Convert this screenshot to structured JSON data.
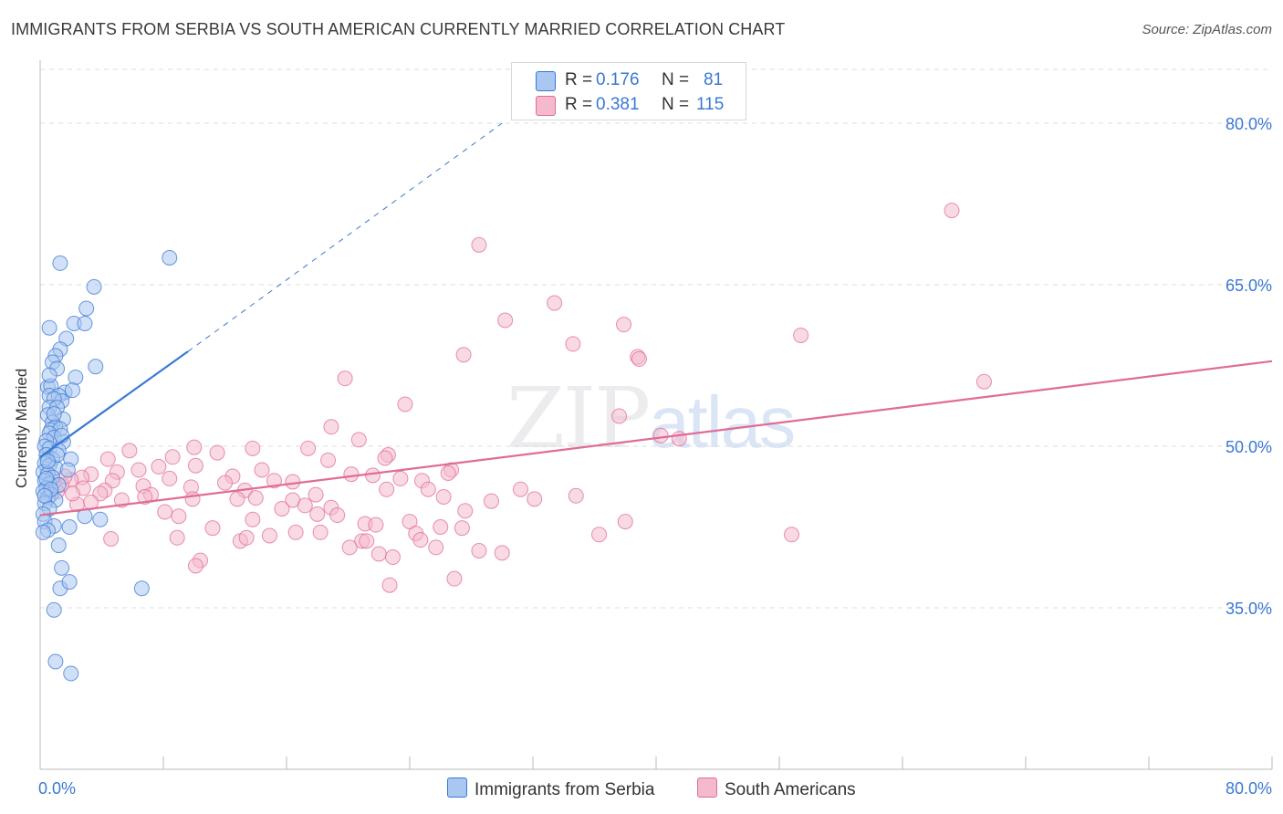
{
  "header": {
    "title": "IMMIGRANTS FROM SERBIA VS SOUTH AMERICAN CURRENTLY MARRIED CORRELATION CHART",
    "source": "Source: ZipAtlas.com"
  },
  "watermark": {
    "zip": "ZIP",
    "atlas": "atlas"
  },
  "colors": {
    "blue": "#3a78d4",
    "blue_fill": "#a9c7f0",
    "pink": "#e06c96",
    "pink_fill": "#f4b9cd",
    "grid": "#dddddd"
  },
  "legend": {
    "rows": [
      {
        "r_label": "R = ",
        "r_value": "0.176",
        "n_label": "N = ",
        "n_value": "81"
      },
      {
        "r_label": "R = ",
        "r_value": "0.381",
        "n_label": "N = ",
        "n_value": "115"
      }
    ]
  },
  "bottom_legend": {
    "series1": "Immigrants from Serbia",
    "series2": "South Americans"
  },
  "chart_data": {
    "type": "scatter",
    "title": "IMMIGRANTS FROM SERBIA VS SOUTH AMERICAN CURRENTLY MARRIED CORRELATION CHART",
    "xlabel": "",
    "ylabel": "Currently Married",
    "xlim": [
      0,
      80
    ],
    "ylim": [
      20,
      85
    ],
    "x_tick_labels": [
      "0.0%",
      "80.0%"
    ],
    "y_ticks": [
      35,
      50,
      65,
      80
    ],
    "y_tick_labels": [
      "35.0%",
      "50.0%",
      "65.0%",
      "80.0%"
    ],
    "grid": true,
    "legend_position": "top-center",
    "series": [
      {
        "name": "Immigrants from Serbia",
        "color": "#3a78d4",
        "r": 0.176,
        "n": 81,
        "trend": {
          "x0": 0,
          "y0": 49.0,
          "x1": 9.6,
          "y1": 58.8,
          "extend_to_x": 30.0,
          "extend_to_y": 80.0
        },
        "points": [
          [
            1.3,
            67.0
          ],
          [
            8.4,
            67.5
          ],
          [
            3.5,
            64.8
          ],
          [
            3.0,
            62.8
          ],
          [
            0.6,
            61.0
          ],
          [
            2.2,
            61.4
          ],
          [
            2.9,
            61.4
          ],
          [
            1.7,
            60.0
          ],
          [
            1.3,
            59.0
          ],
          [
            1.0,
            58.4
          ],
          [
            0.8,
            57.8
          ],
          [
            1.1,
            57.2
          ],
          [
            3.6,
            57.4
          ],
          [
            2.3,
            56.4
          ],
          [
            0.5,
            55.5
          ],
          [
            0.7,
            55.6
          ],
          [
            1.6,
            55.0
          ],
          [
            2.1,
            55.2
          ],
          [
            0.6,
            54.7
          ],
          [
            1.2,
            54.7
          ],
          [
            1.4,
            54.2
          ],
          [
            0.9,
            54.4
          ],
          [
            0.6,
            53.6
          ],
          [
            1.1,
            53.6
          ],
          [
            0.5,
            52.9
          ],
          [
            1.5,
            52.5
          ],
          [
            0.8,
            52.2
          ],
          [
            1.0,
            51.8
          ],
          [
            0.7,
            51.5
          ],
          [
            1.3,
            51.6
          ],
          [
            0.6,
            51.2
          ],
          [
            0.9,
            50.8
          ],
          [
            0.4,
            50.5
          ],
          [
            1.5,
            50.4
          ],
          [
            0.3,
            50.0
          ],
          [
            0.6,
            49.8
          ],
          [
            1.2,
            49.6
          ],
          [
            0.4,
            49.2
          ],
          [
            0.8,
            48.8
          ],
          [
            2.0,
            48.8
          ],
          [
            0.3,
            48.4
          ],
          [
            0.6,
            48.2
          ],
          [
            1.0,
            48.0
          ],
          [
            0.2,
            47.6
          ],
          [
            0.5,
            47.4
          ],
          [
            0.8,
            47.1
          ],
          [
            0.3,
            46.8
          ],
          [
            0.6,
            46.5
          ],
          [
            1.2,
            46.4
          ],
          [
            0.4,
            46.1
          ],
          [
            0.2,
            45.8
          ],
          [
            0.7,
            45.5
          ],
          [
            0.5,
            45.2
          ],
          [
            1.0,
            45.0
          ],
          [
            0.3,
            44.7
          ],
          [
            0.6,
            44.2
          ],
          [
            0.2,
            43.7
          ],
          [
            2.9,
            43.5
          ],
          [
            3.9,
            43.2
          ],
          [
            0.3,
            43.0
          ],
          [
            1.9,
            42.5
          ],
          [
            0.9,
            42.6
          ],
          [
            0.5,
            42.2
          ],
          [
            0.2,
            42.0
          ],
          [
            1.2,
            40.8
          ],
          [
            1.4,
            38.7
          ],
          [
            1.3,
            36.8
          ],
          [
            1.9,
            37.4
          ],
          [
            6.6,
            36.8
          ],
          [
            0.9,
            34.8
          ],
          [
            1.0,
            30.0
          ],
          [
            2.0,
            28.9
          ],
          [
            0.4,
            47.0
          ],
          [
            0.7,
            46.0
          ],
          [
            1.1,
            49.2
          ],
          [
            0.5,
            48.6
          ],
          [
            1.4,
            51.0
          ],
          [
            0.9,
            53.0
          ],
          [
            0.6,
            56.6
          ],
          [
            1.8,
            47.8
          ],
          [
            0.3,
            45.4
          ]
        ]
      },
      {
        "name": "South Americans",
        "color": "#e06c96",
        "r": 0.381,
        "n": 115,
        "trend": {
          "x0": 0,
          "y0": 43.6,
          "x1": 80,
          "y1": 57.9
        },
        "points": [
          [
            59.2,
            71.9
          ],
          [
            28.5,
            68.7
          ],
          [
            33.4,
            63.3
          ],
          [
            30.2,
            61.7
          ],
          [
            37.9,
            61.3
          ],
          [
            34.6,
            59.5
          ],
          [
            49.4,
            60.3
          ],
          [
            27.5,
            58.5
          ],
          [
            38.8,
            58.3
          ],
          [
            38.9,
            58.1
          ],
          [
            19.8,
            56.3
          ],
          [
            61.3,
            56.0
          ],
          [
            23.7,
            53.9
          ],
          [
            37.6,
            52.8
          ],
          [
            18.9,
            51.8
          ],
          [
            20.7,
            50.6
          ],
          [
            40.3,
            51.0
          ],
          [
            41.5,
            50.7
          ],
          [
            17.4,
            49.8
          ],
          [
            22.6,
            49.2
          ],
          [
            13.8,
            49.8
          ],
          [
            10.0,
            49.9
          ],
          [
            11.5,
            49.4
          ],
          [
            5.8,
            49.6
          ],
          [
            8.6,
            49.0
          ],
          [
            4.4,
            48.8
          ],
          [
            18.7,
            48.7
          ],
          [
            22.4,
            48.9
          ],
          [
            26.7,
            47.8
          ],
          [
            14.4,
            47.8
          ],
          [
            10.1,
            48.2
          ],
          [
            7.7,
            48.1
          ],
          [
            6.4,
            47.8
          ],
          [
            5.0,
            47.6
          ],
          [
            3.3,
            47.4
          ],
          [
            2.7,
            47.1
          ],
          [
            20.2,
            47.4
          ],
          [
            21.6,
            47.3
          ],
          [
            12.5,
            47.2
          ],
          [
            8.4,
            47.0
          ],
          [
            4.7,
            46.8
          ],
          [
            2.0,
            46.9
          ],
          [
            1.4,
            46.4
          ],
          [
            2.8,
            46.1
          ],
          [
            23.4,
            47.0
          ],
          [
            24.8,
            46.8
          ],
          [
            26.5,
            47.5
          ],
          [
            12.0,
            46.6
          ],
          [
            15.2,
            46.8
          ],
          [
            16.4,
            46.7
          ],
          [
            9.8,
            46.2
          ],
          [
            6.7,
            46.3
          ],
          [
            4.2,
            45.9
          ],
          [
            13.3,
            45.9
          ],
          [
            17.9,
            45.5
          ],
          [
            7.2,
            45.5
          ],
          [
            3.9,
            45.6
          ],
          [
            12.8,
            45.1
          ],
          [
            16.4,
            45.0
          ],
          [
            14.0,
            45.2
          ],
          [
            22.5,
            46.0
          ],
          [
            25.2,
            46.0
          ],
          [
            26.2,
            45.3
          ],
          [
            9.9,
            45.1
          ],
          [
            6.8,
            45.3
          ],
          [
            5.3,
            45.0
          ],
          [
            2.4,
            44.6
          ],
          [
            17.2,
            44.5
          ],
          [
            18.9,
            44.3
          ],
          [
            15.7,
            44.2
          ],
          [
            19.3,
            43.6
          ],
          [
            8.1,
            43.9
          ],
          [
            32.1,
            45.1
          ],
          [
            27.6,
            44.0
          ],
          [
            18.0,
            43.7
          ],
          [
            13.8,
            43.2
          ],
          [
            9.0,
            43.5
          ],
          [
            21.1,
            42.8
          ],
          [
            21.8,
            42.7
          ],
          [
            24.0,
            43.0
          ],
          [
            26.0,
            42.5
          ],
          [
            27.4,
            42.4
          ],
          [
            38.0,
            43.0
          ],
          [
            36.3,
            41.8
          ],
          [
            48.8,
            41.8
          ],
          [
            11.2,
            42.4
          ],
          [
            14.9,
            41.7
          ],
          [
            16.6,
            42.0
          ],
          [
            18.2,
            42.0
          ],
          [
            20.9,
            41.2
          ],
          [
            24.4,
            41.9
          ],
          [
            13.0,
            41.2
          ],
          [
            8.9,
            41.5
          ],
          [
            4.6,
            41.4
          ],
          [
            13.4,
            41.5
          ],
          [
            21.2,
            41.2
          ],
          [
            20.1,
            40.6
          ],
          [
            24.7,
            41.3
          ],
          [
            25.7,
            40.6
          ],
          [
            30.0,
            40.1
          ],
          [
            28.5,
            40.3
          ],
          [
            22.0,
            40.0
          ],
          [
            22.9,
            39.7
          ],
          [
            10.4,
            39.4
          ],
          [
            10.1,
            38.9
          ],
          [
            26.9,
            37.7
          ],
          [
            22.7,
            37.1
          ],
          [
            29.3,
            44.9
          ],
          [
            34.8,
            45.4
          ],
          [
            31.2,
            46.0
          ],
          [
            2.1,
            45.6
          ],
          [
            1.1,
            45.8
          ],
          [
            0.9,
            46.7
          ],
          [
            1.6,
            47.2
          ],
          [
            3.3,
            44.8
          ]
        ]
      }
    ]
  }
}
